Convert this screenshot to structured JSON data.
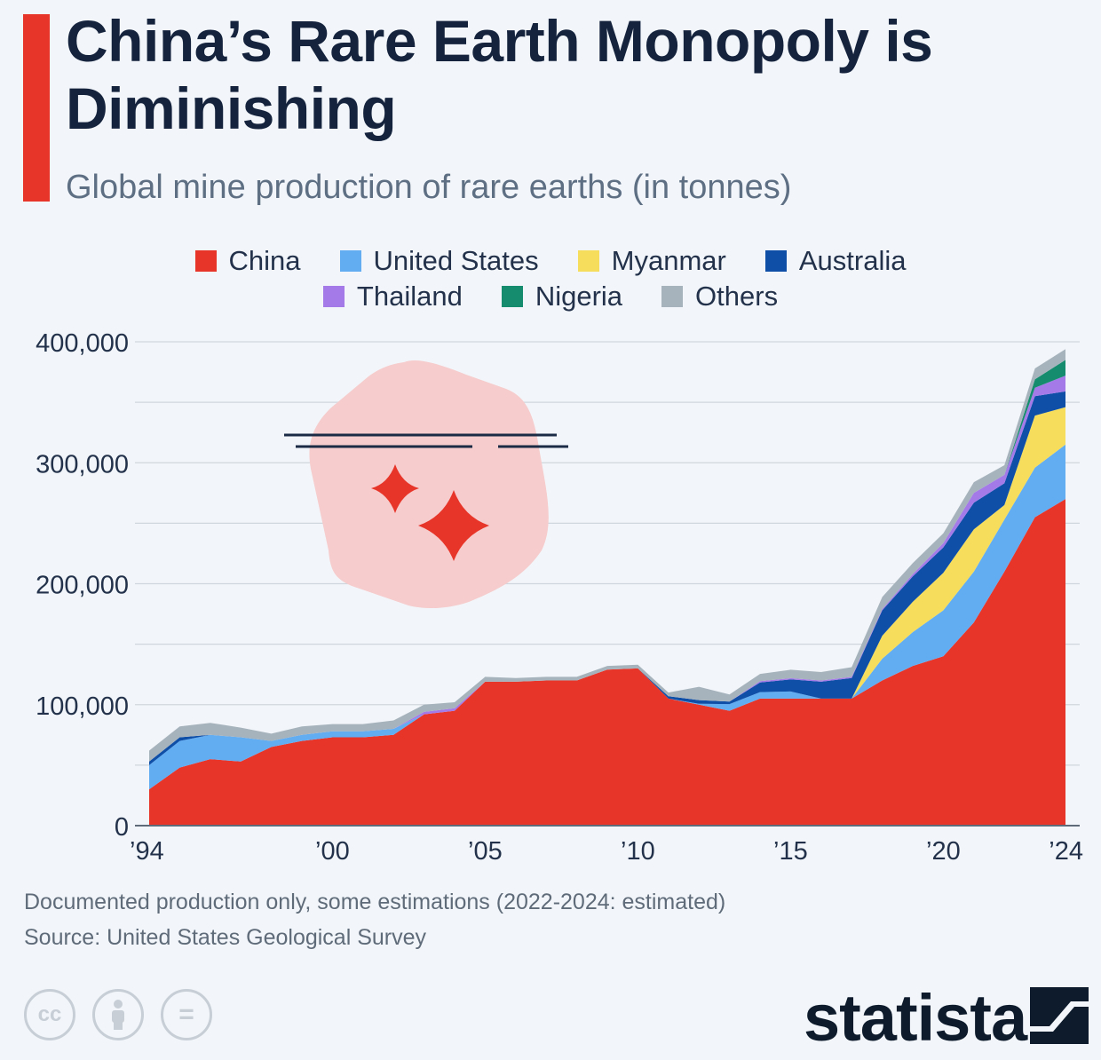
{
  "header": {
    "title": "China’s Rare Earth Monopoly is Diminishing",
    "subtitle": "Global mine production of rare earths (in tonnes)"
  },
  "colors": {
    "accent": "#e8352a",
    "China": "#e8352a",
    "United States": "#62acf2",
    "Myanmar": "#f6de5c",
    "Australia": "#0f4fa8",
    "Thailand": "#a37ae8",
    "Nigeria": "#168c6e",
    "Others": "#a7b3bc"
  },
  "legend": {
    "row1": [
      "China",
      "United States",
      "Myanmar",
      "Australia"
    ],
    "row2": [
      "Thailand",
      "Nigeria",
      "Others"
    ]
  },
  "chart_data": {
    "type": "area",
    "stacked": true,
    "x": [
      1994,
      1995,
      1996,
      1997,
      1998,
      1999,
      2000,
      2001,
      2002,
      2003,
      2004,
      2005,
      2006,
      2007,
      2008,
      2009,
      2010,
      2011,
      2012,
      2013,
      2014,
      2015,
      2016,
      2017,
      2018,
      2019,
      2020,
      2021,
      2022,
      2023,
      2024
    ],
    "x_tick_values": [
      1994,
      2000,
      2005,
      2010,
      2015,
      2020,
      2024
    ],
    "x_tick_labels": [
      "’94",
      "’00",
      "’05",
      "’10",
      "’15",
      "’20",
      "’24"
    ],
    "y_ticks": [
      0,
      100000,
      200000,
      300000,
      400000
    ],
    "y_tick_labels": [
      "0",
      "100,000",
      "200,000",
      "300,000",
      "400,000"
    ],
    "ylim": [
      0,
      400000
    ],
    "grid": true,
    "legend_position": "top",
    "series": [
      {
        "name": "China",
        "values": [
          30000,
          48000,
          55000,
          53000,
          65000,
          70000,
          73000,
          73000,
          75000,
          92000,
          95000,
          119000,
          119000,
          120000,
          120000,
          129000,
          130000,
          105000,
          100000,
          95000,
          105000,
          105000,
          105000,
          105000,
          120000,
          132000,
          140000,
          168000,
          210000,
          255000,
          270000
        ]
      },
      {
        "name": "United States",
        "values": [
          20000,
          22000,
          20000,
          20000,
          5000,
          5000,
          5000,
          5000,
          5000,
          0,
          0,
          0,
          0,
          0,
          0,
          0,
          0,
          0,
          800,
          5500,
          5400,
          5900,
          0,
          0,
          18000,
          28000,
          38000,
          42000,
          43000,
          41000,
          45000
        ]
      },
      {
        "name": "Myanmar",
        "values": [
          0,
          0,
          0,
          0,
          0,
          0,
          0,
          0,
          0,
          0,
          0,
          0,
          0,
          0,
          0,
          0,
          0,
          0,
          0,
          0,
          0,
          0,
          0,
          0,
          19000,
          25000,
          31000,
          35000,
          12000,
          43000,
          31000
        ]
      },
      {
        "name": "Australia",
        "values": [
          3000,
          3000,
          0,
          0,
          0,
          0,
          0,
          0,
          0,
          0,
          0,
          0,
          0,
          0,
          0,
          0,
          0,
          2000,
          3000,
          2000,
          8000,
          10000,
          14000,
          17000,
          21000,
          21000,
          21000,
          22000,
          18000,
          16000,
          13000
        ]
      },
      {
        "name": "Thailand",
        "values": [
          0,
          0,
          0,
          0,
          0,
          0,
          0,
          0,
          0,
          2000,
          2000,
          0,
          0,
          0,
          0,
          0,
          0,
          0,
          0,
          0,
          1000,
          1000,
          1000,
          1000,
          1000,
          2000,
          3600,
          8000,
          7000,
          7000,
          13000
        ]
      },
      {
        "name": "Nigeria",
        "values": [
          0,
          0,
          0,
          0,
          0,
          0,
          0,
          0,
          0,
          0,
          0,
          0,
          0,
          0,
          0,
          0,
          0,
          0,
          0,
          0,
          0,
          0,
          0,
          0,
          0,
          0,
          0,
          0,
          0,
          7000,
          13000
        ]
      },
      {
        "name": "Others",
        "values": [
          9000,
          9000,
          10000,
          8000,
          6000,
          7000,
          6000,
          6000,
          7000,
          6000,
          5000,
          4000,
          3000,
          3000,
          3000,
          3000,
          3000,
          3000,
          11000,
          6000,
          6000,
          7000,
          7000,
          8000,
          10000,
          9000,
          8000,
          9000,
          8000,
          9000,
          9000
        ]
      }
    ]
  },
  "footnotes": {
    "note": "Documented production only, some estimations (2022-2024: estimated)",
    "source": "Source: United States Geological Survey"
  },
  "footer": {
    "cc_label": "cc",
    "equal_label": "=",
    "brand": "statista"
  }
}
